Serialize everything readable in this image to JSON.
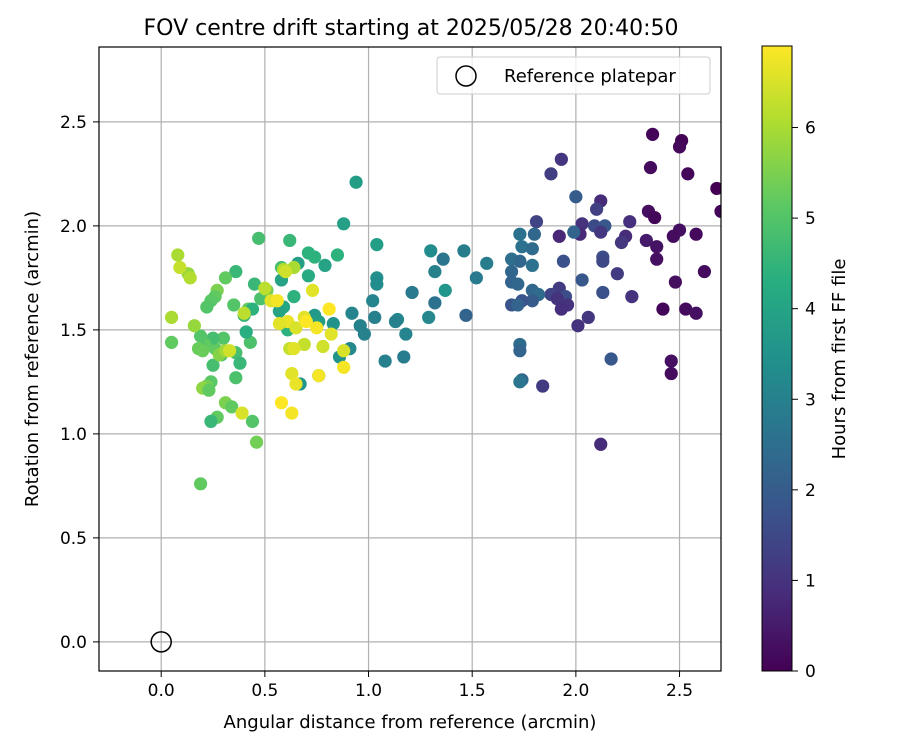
{
  "chart_data": {
    "type": "scatter",
    "title": "FOV centre drift starting at 2025/05/28 20:40:50",
    "xlabel": "Angular distance from reference (arcmin)",
    "ylabel": "Rotation from reference (arcmin)",
    "xlim": [
      -0.3,
      2.7
    ],
    "ylim": [
      -0.14,
      2.86
    ],
    "xticks": [
      0.0,
      0.5,
      1.0,
      1.5,
      2.0,
      2.5
    ],
    "xtick_labels": [
      "0.0",
      "0.5",
      "1.0",
      "1.5",
      "2.0",
      "2.5"
    ],
    "yticks": [
      0.0,
      0.5,
      1.0,
      1.5,
      2.0,
      2.5
    ],
    "ytick_labels": [
      "0.0",
      "0.5",
      "1.0",
      "1.5",
      "2.0",
      "2.5"
    ],
    "grid": true,
    "legend": {
      "placement": "top-right",
      "entries": [
        "Reference platepar"
      ]
    },
    "reference_point": {
      "x": 0.0,
      "y": 0.0
    },
    "colorbar": {
      "label": "Hours from first FF file",
      "range": [
        0,
        6.9
      ],
      "ticks": [
        0,
        1,
        2,
        3,
        4,
        5,
        6
      ],
      "tick_labels": [
        "0",
        "1",
        "2",
        "3",
        "4",
        "5",
        "6"
      ],
      "colormap": "viridis"
    },
    "series": [
      {
        "points": [
          {
            "x": 2.37,
            "y": 2.44,
            "t": 0.1
          },
          {
            "x": 2.51,
            "y": 2.41,
            "t": 0.05
          },
          {
            "x": 2.5,
            "y": 2.38,
            "t": 0.15
          },
          {
            "x": 2.36,
            "y": 2.28,
            "t": 0.2
          },
          {
            "x": 2.54,
            "y": 2.25,
            "t": 0.1
          },
          {
            "x": 2.68,
            "y": 2.18,
            "t": 0.0
          },
          {
            "x": 2.35,
            "y": 2.07,
            "t": 0.25
          },
          {
            "x": 2.38,
            "y": 2.04,
            "t": 0.1
          },
          {
            "x": 2.5,
            "y": 1.98,
            "t": 0.3
          },
          {
            "x": 2.47,
            "y": 1.95,
            "t": 0.2
          },
          {
            "x": 2.58,
            "y": 1.96,
            "t": 0.15
          },
          {
            "x": 2.34,
            "y": 1.93,
            "t": 0.5
          },
          {
            "x": 2.39,
            "y": 1.9,
            "t": 0.35
          },
          {
            "x": 2.39,
            "y": 1.84,
            "t": 0.3
          },
          {
            "x": 2.62,
            "y": 1.78,
            "t": 0.2
          },
          {
            "x": 2.48,
            "y": 1.73,
            "t": 0.25
          },
          {
            "x": 2.42,
            "y": 1.6,
            "t": 0.1
          },
          {
            "x": 2.53,
            "y": 1.6,
            "t": 0.2
          },
          {
            "x": 2.58,
            "y": 1.58,
            "t": 0.3
          },
          {
            "x": 2.46,
            "y": 1.35,
            "t": 0.3
          },
          {
            "x": 2.46,
            "y": 1.29,
            "t": 0.2
          },
          {
            "x": 2.7,
            "y": 2.07,
            "t": 0.1
          },
          {
            "x": 1.93,
            "y": 2.32,
            "t": 1.05
          },
          {
            "x": 1.88,
            "y": 2.25,
            "t": 1.25
          },
          {
            "x": 2.12,
            "y": 2.12,
            "t": 0.85
          },
          {
            "x": 2.1,
            "y": 2.08,
            "t": 1.3
          },
          {
            "x": 2.26,
            "y": 2.02,
            "t": 0.9
          },
          {
            "x": 2.03,
            "y": 2.01,
            "t": 1.0
          },
          {
            "x": 2.09,
            "y": 2.0,
            "t": 1.55
          },
          {
            "x": 2.14,
            "y": 2.0,
            "t": 1.9
          },
          {
            "x": 2.12,
            "y": 1.97,
            "t": 1.1
          },
          {
            "x": 2.02,
            "y": 1.96,
            "t": 0.8
          },
          {
            "x": 1.92,
            "y": 1.95,
            "t": 0.75
          },
          {
            "x": 2.24,
            "y": 1.95,
            "t": 0.85
          },
          {
            "x": 2.22,
            "y": 1.92,
            "t": 1.1
          },
          {
            "x": 2.13,
            "y": 1.85,
            "t": 1.6
          },
          {
            "x": 2.13,
            "y": 1.83,
            "t": 1.5
          },
          {
            "x": 1.94,
            "y": 1.83,
            "t": 1.7
          },
          {
            "x": 2.2,
            "y": 1.77,
            "t": 1.2
          },
          {
            "x": 2.03,
            "y": 1.74,
            "t": 1.9
          },
          {
            "x": 1.92,
            "y": 1.7,
            "t": 1.2
          },
          {
            "x": 1.88,
            "y": 1.67,
            "t": 1.4
          },
          {
            "x": 2.27,
            "y": 1.66,
            "t": 1.0
          },
          {
            "x": 2.13,
            "y": 1.68,
            "t": 1.7
          },
          {
            "x": 1.95,
            "y": 1.66,
            "t": 1.6
          },
          {
            "x": 1.91,
            "y": 1.65,
            "t": 1.0
          },
          {
            "x": 1.96,
            "y": 1.62,
            "t": 1.0
          },
          {
            "x": 1.93,
            "y": 1.6,
            "t": 0.9
          },
          {
            "x": 2.06,
            "y": 1.56,
            "t": 1.1
          },
          {
            "x": 2.01,
            "y": 1.52,
            "t": 1.0
          },
          {
            "x": 2.17,
            "y": 1.36,
            "t": 1.9
          },
          {
            "x": 1.84,
            "y": 1.23,
            "t": 1.2
          },
          {
            "x": 2.12,
            "y": 0.95,
            "t": 0.85
          },
          {
            "x": 1.81,
            "y": 2.02,
            "t": 1.4
          },
          {
            "x": 2.0,
            "y": 2.14,
            "t": 2.0
          },
          {
            "x": 1.99,
            "y": 1.97,
            "t": 2.2
          },
          {
            "x": 1.73,
            "y": 1.96,
            "t": 2.6
          },
          {
            "x": 1.8,
            "y": 1.96,
            "t": 2.3
          },
          {
            "x": 1.74,
            "y": 1.9,
            "t": 2.6
          },
          {
            "x": 1.79,
            "y": 1.89,
            "t": 2.4
          },
          {
            "x": 1.69,
            "y": 1.84,
            "t": 2.5
          },
          {
            "x": 1.73,
            "y": 1.83,
            "t": 2.3
          },
          {
            "x": 1.79,
            "y": 1.81,
            "t": 2.6
          },
          {
            "x": 1.69,
            "y": 1.78,
            "t": 2.3
          },
          {
            "x": 1.57,
            "y": 1.82,
            "t": 2.9
          },
          {
            "x": 1.69,
            "y": 1.73,
            "t": 2.2
          },
          {
            "x": 1.72,
            "y": 1.72,
            "t": 2.3
          },
          {
            "x": 1.79,
            "y": 1.69,
            "t": 2.3
          },
          {
            "x": 1.82,
            "y": 1.67,
            "t": 2.4
          },
          {
            "x": 1.79,
            "y": 1.64,
            "t": 2.0
          },
          {
            "x": 1.74,
            "y": 1.64,
            "t": 1.8
          },
          {
            "x": 1.69,
            "y": 1.62,
            "t": 1.8
          },
          {
            "x": 1.72,
            "y": 1.62,
            "t": 2.2
          },
          {
            "x": 1.73,
            "y": 1.43,
            "t": 2.4
          },
          {
            "x": 1.73,
            "y": 1.4,
            "t": 2.2
          },
          {
            "x": 1.74,
            "y": 1.26,
            "t": 2.3
          },
          {
            "x": 1.73,
            "y": 1.25,
            "t": 2.7
          },
          {
            "x": 1.46,
            "y": 1.88,
            "t": 2.9
          },
          {
            "x": 1.52,
            "y": 1.75,
            "t": 2.8
          },
          {
            "x": 1.47,
            "y": 1.57,
            "t": 2.2
          },
          {
            "x": 1.36,
            "y": 1.84,
            "t": 2.7
          },
          {
            "x": 1.3,
            "y": 1.88,
            "t": 3.3
          },
          {
            "x": 1.32,
            "y": 1.78,
            "t": 3.0
          },
          {
            "x": 1.32,
            "y": 1.63,
            "t": 2.6
          },
          {
            "x": 1.29,
            "y": 1.56,
            "t": 3.2
          },
          {
            "x": 1.37,
            "y": 1.69,
            "t": 3.6
          },
          {
            "x": 1.21,
            "y": 1.68,
            "t": 2.8
          },
          {
            "x": 1.18,
            "y": 1.48,
            "t": 3.1
          },
          {
            "x": 1.17,
            "y": 1.37,
            "t": 2.9
          },
          {
            "x": 1.14,
            "y": 1.55,
            "t": 3.2
          },
          {
            "x": 1.13,
            "y": 1.54,
            "t": 3.0
          },
          {
            "x": 1.08,
            "y": 1.35,
            "t": 3.0
          },
          {
            "x": 1.04,
            "y": 1.75,
            "t": 3.4
          },
          {
            "x": 1.04,
            "y": 1.72,
            "t": 3.3
          },
          {
            "x": 1.03,
            "y": 1.56,
            "t": 3.0
          },
          {
            "x": 1.02,
            "y": 1.64,
            "t": 3.1
          },
          {
            "x": 0.98,
            "y": 1.48,
            "t": 3.0
          },
          {
            "x": 0.96,
            "y": 1.52,
            "t": 3.0
          },
          {
            "x": 0.92,
            "y": 1.58,
            "t": 3.1
          },
          {
            "x": 0.91,
            "y": 1.41,
            "t": 3.2
          },
          {
            "x": 0.86,
            "y": 1.37,
            "t": 3.5
          },
          {
            "x": 1.04,
            "y": 1.91,
            "t": 3.8
          },
          {
            "x": 0.94,
            "y": 2.21,
            "t": 3.8
          },
          {
            "x": 0.88,
            "y": 2.01,
            "t": 3.9
          },
          {
            "x": 0.85,
            "y": 1.86,
            "t": 4.4
          },
          {
            "x": 0.79,
            "y": 1.81,
            "t": 4.0
          },
          {
            "x": 0.74,
            "y": 1.85,
            "t": 4.4
          },
          {
            "x": 0.71,
            "y": 1.87,
            "t": 4.4
          },
          {
            "x": 0.66,
            "y": 1.82,
            "t": 3.9
          },
          {
            "x": 0.62,
            "y": 1.93,
            "t": 4.6
          },
          {
            "x": 0.58,
            "y": 1.8,
            "t": 4.8
          },
          {
            "x": 0.58,
            "y": 1.74,
            "t": 4.0
          },
          {
            "x": 0.71,
            "y": 1.76,
            "t": 4.2
          },
          {
            "x": 0.64,
            "y": 1.66,
            "t": 4.4
          },
          {
            "x": 0.59,
            "y": 1.61,
            "t": 4.1
          },
          {
            "x": 0.57,
            "y": 1.59,
            "t": 4.0
          },
          {
            "x": 0.74,
            "y": 1.57,
            "t": 3.7
          },
          {
            "x": 0.76,
            "y": 1.54,
            "t": 3.8
          },
          {
            "x": 0.83,
            "y": 1.53,
            "t": 3.5
          },
          {
            "x": 0.67,
            "y": 1.24,
            "t": 3.6
          },
          {
            "x": 0.76,
            "y": 1.28,
            "t": 3.5
          },
          {
            "x": 0.61,
            "y": 1.5,
            "t": 4.4
          },
          {
            "x": 0.48,
            "y": 1.65,
            "t": 4.9
          },
          {
            "x": 0.45,
            "y": 1.72,
            "t": 4.6
          },
          {
            "x": 0.47,
            "y": 1.94,
            "t": 4.8
          },
          {
            "x": 0.51,
            "y": 1.69,
            "t": 5.4
          },
          {
            "x": 0.4,
            "y": 1.57,
            "t": 4.6
          },
          {
            "x": 0.42,
            "y": 1.6,
            "t": 5.2
          },
          {
            "x": 0.44,
            "y": 1.6,
            "t": 4.4
          },
          {
            "x": 0.43,
            "y": 1.44,
            "t": 4.9
          },
          {
            "x": 0.41,
            "y": 1.49,
            "t": 4.3
          },
          {
            "x": 0.36,
            "y": 1.78,
            "t": 4.6
          },
          {
            "x": 0.31,
            "y": 1.75,
            "t": 5.2
          },
          {
            "x": 0.27,
            "y": 1.69,
            "t": 5.5
          },
          {
            "x": 0.26,
            "y": 1.66,
            "t": 5.2
          },
          {
            "x": 0.24,
            "y": 1.64,
            "t": 5.1
          },
          {
            "x": 0.22,
            "y": 1.61,
            "t": 5.0
          },
          {
            "x": 0.35,
            "y": 1.62,
            "t": 5.0
          },
          {
            "x": 0.36,
            "y": 1.39,
            "t": 4.8
          },
          {
            "x": 0.38,
            "y": 1.34,
            "t": 4.6
          },
          {
            "x": 0.36,
            "y": 1.27,
            "t": 4.9
          },
          {
            "x": 0.3,
            "y": 1.46,
            "t": 5.0
          },
          {
            "x": 0.29,
            "y": 1.38,
            "t": 4.8
          },
          {
            "x": 0.26,
            "y": 1.41,
            "t": 5.2
          },
          {
            "x": 0.25,
            "y": 1.46,
            "t": 4.8
          },
          {
            "x": 0.25,
            "y": 1.33,
            "t": 4.8
          },
          {
            "x": 0.21,
            "y": 1.43,
            "t": 5.2
          },
          {
            "x": 0.19,
            "y": 1.47,
            "t": 5.0
          },
          {
            "x": 0.19,
            "y": 1.41,
            "t": 4.9
          },
          {
            "x": 0.18,
            "y": 1.41,
            "t": 5.3
          },
          {
            "x": 0.2,
            "y": 1.4,
            "t": 5.3
          },
          {
            "x": 0.24,
            "y": 1.25,
            "t": 5.1
          },
          {
            "x": 0.22,
            "y": 1.23,
            "t": 5.4
          },
          {
            "x": 0.2,
            "y": 1.22,
            "t": 5.7
          },
          {
            "x": 0.23,
            "y": 1.21,
            "t": 5.2
          },
          {
            "x": 0.31,
            "y": 1.15,
            "t": 5.5
          },
          {
            "x": 0.34,
            "y": 1.13,
            "t": 5.2
          },
          {
            "x": 0.27,
            "y": 1.08,
            "t": 5.2
          },
          {
            "x": 0.24,
            "y": 1.06,
            "t": 4.6
          },
          {
            "x": 0.44,
            "y": 1.06,
            "t": 5.0
          },
          {
            "x": 0.46,
            "y": 0.96,
            "t": 5.4
          },
          {
            "x": 0.19,
            "y": 0.76,
            "t": 5.2
          },
          {
            "x": 0.05,
            "y": 1.44,
            "t": 5.2
          },
          {
            "x": 0.16,
            "y": 1.52,
            "t": 5.8
          },
          {
            "x": 0.05,
            "y": 1.56,
            "t": 6.0
          },
          {
            "x": 0.13,
            "y": 1.77,
            "t": 5.8
          },
          {
            "x": 0.14,
            "y": 1.75,
            "t": 6.1
          },
          {
            "x": 0.09,
            "y": 1.8,
            "t": 6.3
          },
          {
            "x": 0.08,
            "y": 1.86,
            "t": 6.0
          },
          {
            "x": 0.28,
            "y": 1.38,
            "t": 5.6
          },
          {
            "x": 0.31,
            "y": 1.4,
            "t": 5.9
          },
          {
            "x": 0.4,
            "y": 1.58,
            "t": 6.2
          },
          {
            "x": 0.59,
            "y": 1.79,
            "t": 6.1
          },
          {
            "x": 0.64,
            "y": 1.8,
            "t": 6.0
          },
          {
            "x": 0.6,
            "y": 1.78,
            "t": 6.4
          },
          {
            "x": 0.73,
            "y": 1.69,
            "t": 6.6
          },
          {
            "x": 0.53,
            "y": 1.64,
            "t": 6.6
          },
          {
            "x": 0.56,
            "y": 1.64,
            "t": 6.8
          },
          {
            "x": 0.61,
            "y": 1.54,
            "t": 6.7
          },
          {
            "x": 0.57,
            "y": 1.53,
            "t": 6.6
          },
          {
            "x": 0.69,
            "y": 1.56,
            "t": 6.6
          },
          {
            "x": 0.65,
            "y": 1.51,
            "t": 6.5
          },
          {
            "x": 0.7,
            "y": 1.54,
            "t": 6.9
          },
          {
            "x": 0.75,
            "y": 1.51,
            "t": 6.8
          },
          {
            "x": 0.81,
            "y": 1.6,
            "t": 6.9
          },
          {
            "x": 0.82,
            "y": 1.48,
            "t": 6.6
          },
          {
            "x": 0.69,
            "y": 1.43,
            "t": 6.3
          },
          {
            "x": 0.62,
            "y": 1.41,
            "t": 6.3
          },
          {
            "x": 0.64,
            "y": 1.41,
            "t": 6.6
          },
          {
            "x": 0.78,
            "y": 1.42,
            "t": 6.4
          },
          {
            "x": 0.88,
            "y": 1.4,
            "t": 6.5
          },
          {
            "x": 0.88,
            "y": 1.32,
            "t": 6.8
          },
          {
            "x": 0.63,
            "y": 1.29,
            "t": 6.6
          },
          {
            "x": 0.76,
            "y": 1.28,
            "t": 6.8
          },
          {
            "x": 0.65,
            "y": 1.24,
            "t": 6.7
          },
          {
            "x": 0.58,
            "y": 1.15,
            "t": 6.9
          },
          {
            "x": 0.63,
            "y": 1.1,
            "t": 6.8
          },
          {
            "x": 0.39,
            "y": 1.1,
            "t": 6.5
          },
          {
            "x": 0.5,
            "y": 1.7,
            "t": 6.2
          },
          {
            "x": 0.33,
            "y": 1.4,
            "t": 6.4
          }
        ]
      }
    ]
  }
}
